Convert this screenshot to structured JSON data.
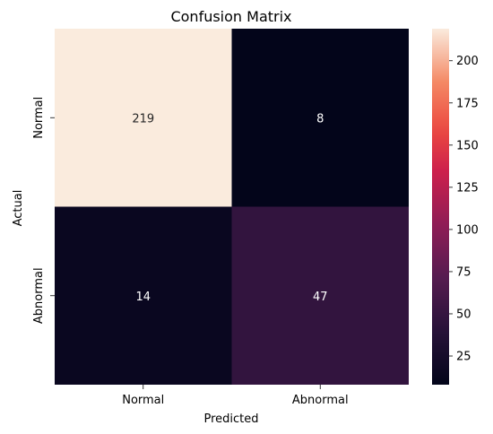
{
  "chart_data": {
    "type": "heatmap",
    "title": "Confusion Matrix",
    "xlabel": "Predicted",
    "ylabel": "Actual",
    "x_categories": [
      "Normal",
      "Abnormal"
    ],
    "y_categories": [
      "Normal",
      "Abnormal"
    ],
    "values": [
      [
        219,
        8
      ],
      [
        14,
        47
      ]
    ],
    "colorbar": {
      "range": [
        8,
        219
      ],
      "ticks": [
        "25",
        "50",
        "75",
        "100",
        "125",
        "150",
        "175",
        "200"
      ],
      "colormap": "rocket"
    }
  }
}
